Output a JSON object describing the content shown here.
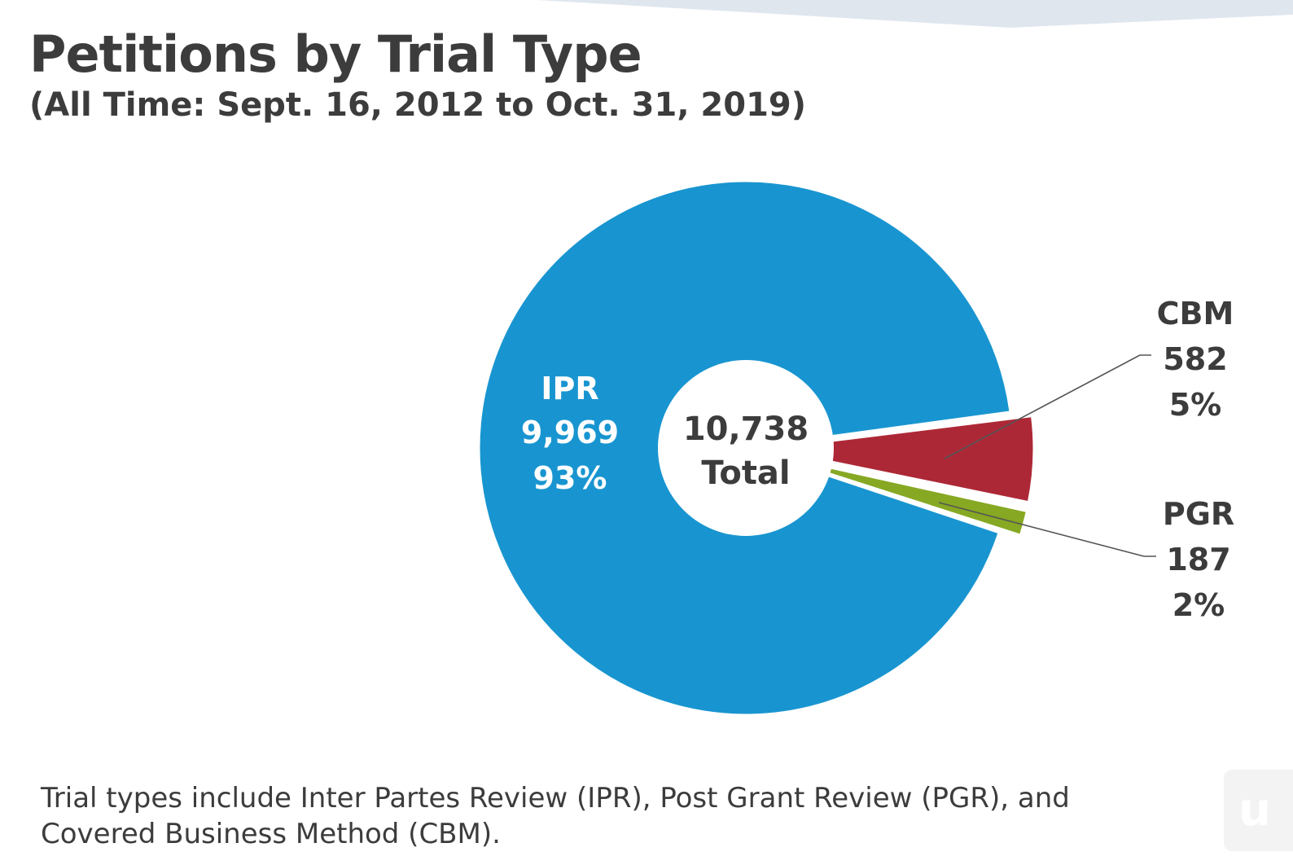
{
  "page": {
    "title": "Petitions by Trial Type",
    "subtitle": "(All Time: Sept. 16, 2012 to Oct. 31, 2019)",
    "footnote": "Trial types include Inter Partes Review (IPR), Post Grant Review (PGR), and Covered Business Method (CBM).",
    "logo_text": "u"
  },
  "chart_data": {
    "type": "pie",
    "donut": true,
    "center_label": {
      "value": "10,738",
      "text": "Total"
    },
    "total": 10738,
    "slices": [
      {
        "label": "IPR",
        "value": 9969,
        "value_label": "9,969",
        "percent_label": "93%",
        "color": "#1895d0"
      },
      {
        "label": "CBM",
        "value": 582,
        "value_label": "582",
        "percent_label": "5%",
        "color": "#ad2836"
      },
      {
        "label": "PGR",
        "value": 187,
        "value_label": "187",
        "percent_label": "2%",
        "color": "#86a823"
      }
    ]
  },
  "colors": {
    "text": "#3c3c3c",
    "top_band": "#dfe6ee",
    "leader_line": "#555555"
  }
}
